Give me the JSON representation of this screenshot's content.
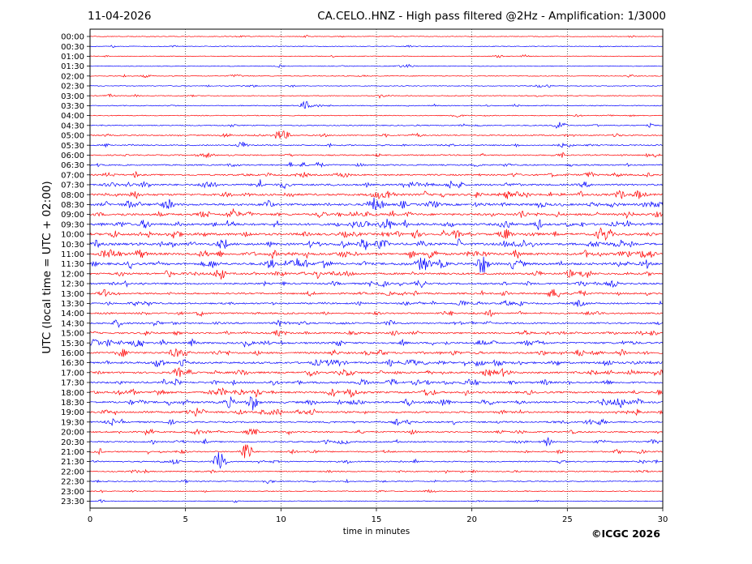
{
  "header": {
    "date": "11-04-2026",
    "title": "CA.CELO..HNZ - High pass filtered @2Hz - Amplification: 1/3000"
  },
  "footer": {
    "credit": "©ICGC 2026"
  },
  "chart_data": {
    "type": "line",
    "subtype": "seismogram-helicorder",
    "xlabel": "time in minutes",
    "ylabel": "UTC (local time = UTC + 02:00)",
    "xlim": [
      0,
      30
    ],
    "x_ticks": [
      0,
      5,
      10,
      15,
      20,
      25,
      30
    ],
    "grid": "vertical dotted at 5-minute intervals",
    "trace_colors": [
      "#ff0000",
      "#0000ff"
    ],
    "rows": [
      "00:00",
      "00:30",
      "01:00",
      "01:30",
      "02:00",
      "02:30",
      "03:00",
      "03:30",
      "04:00",
      "04:30",
      "05:00",
      "05:30",
      "06:00",
      "06:30",
      "07:00",
      "07:30",
      "08:00",
      "08:30",
      "09:00",
      "09:30",
      "10:00",
      "10:30",
      "11:00",
      "11:30",
      "12:00",
      "12:30",
      "13:00",
      "13:30",
      "14:00",
      "14:30",
      "15:00",
      "15:30",
      "16:00",
      "16:30",
      "17:00",
      "17:30",
      "18:00",
      "18:30",
      "19:00",
      "19:30",
      "20:00",
      "20:30",
      "21:00",
      "21:30",
      "22:00",
      "22:30",
      "23:00",
      "23:30"
    ],
    "activity_level": [
      0.05,
      0.05,
      0.05,
      0.05,
      0.1,
      0.1,
      0.12,
      0.15,
      0.15,
      0.2,
      0.3,
      0.35,
      0.35,
      0.4,
      0.55,
      0.7,
      0.85,
      0.9,
      0.9,
      0.95,
      1.0,
      1.0,
      1.0,
      1.0,
      0.8,
      0.65,
      0.6,
      0.55,
      0.55,
      0.6,
      0.6,
      0.7,
      0.75,
      0.8,
      0.75,
      0.7,
      0.75,
      0.8,
      0.7,
      0.55,
      0.5,
      0.45,
      0.4,
      0.35,
      0.3,
      0.2,
      0.12,
      0.08
    ],
    "notable_events": [
      {
        "row": "21:30",
        "x": 6.8,
        "amplitude": 3.2
      },
      {
        "row": "21:00",
        "x": 8.2,
        "amplitude": 2.2
      },
      {
        "row": "18:30",
        "x": 8.5,
        "amplitude": 1.6
      },
      {
        "row": "08:30",
        "x": 14.8,
        "amplitude": 1.4
      },
      {
        "row": "11:30",
        "x": 20.6,
        "amplitude": 1.3
      },
      {
        "row": "03:30",
        "x": 11.3,
        "amplitude": 0.9
      },
      {
        "row": "04:30",
        "x": 24.6,
        "amplitude": 0.9
      },
      {
        "row": "05:00",
        "x": 10.2,
        "amplitude": 0.8
      }
    ]
  }
}
